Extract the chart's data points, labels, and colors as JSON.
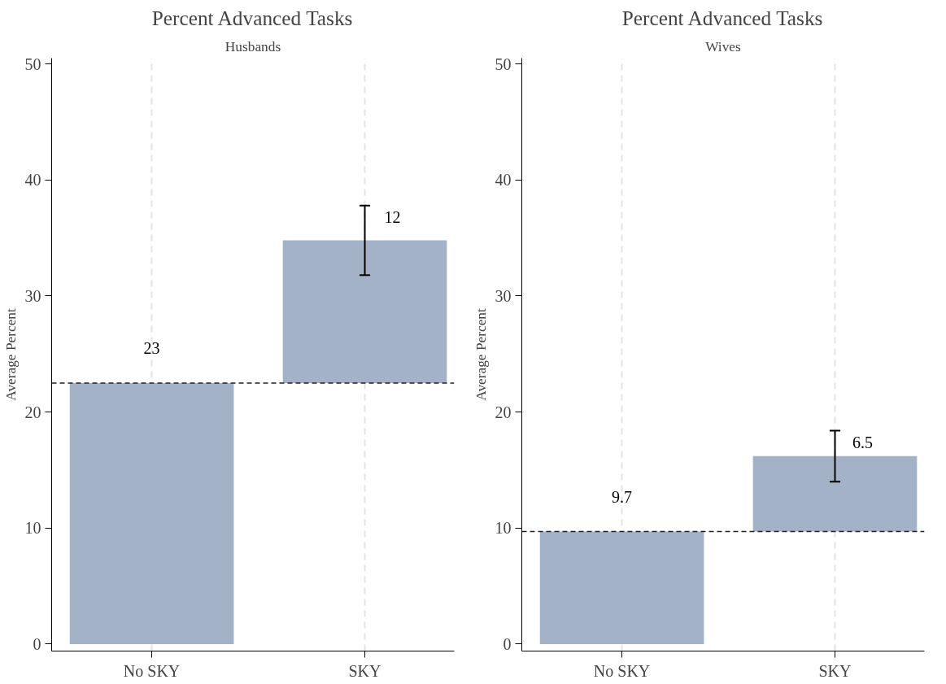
{
  "chart_data": [
    {
      "type": "bar",
      "title": "Percent Advanced Tasks",
      "subtitle": "Husbands",
      "ylabel": "Average Percent",
      "categories": [
        "No SKY",
        "SKY"
      ],
      "values": [
        22.5,
        12.3
      ],
      "base": [
        0,
        22.5
      ],
      "errors": [
        null,
        3.0
      ],
      "value_labels": [
        "23",
        "12"
      ],
      "color": "#a3b2c7",
      "ref_lines": [
        {
          "axis": "y",
          "value": 22.5,
          "line_style": "dashed",
          "color": "#222222"
        }
      ],
      "ylim": [
        -0.6,
        50.5
      ],
      "yticks": [
        0,
        10,
        20,
        30,
        40,
        50
      ],
      "grid": "x"
    },
    {
      "type": "bar",
      "title": "Percent Advanced Tasks",
      "subtitle": "Wives",
      "ylabel": "Average Percent",
      "categories": [
        "No SKY",
        "SKY"
      ],
      "values": [
        9.7,
        6.5
      ],
      "base": [
        0,
        9.7
      ],
      "errors": [
        null,
        2.2
      ],
      "value_labels": [
        "9.7",
        "6.5"
      ],
      "color": "#a3b2c7",
      "ref_lines": [
        {
          "axis": "y",
          "value": 9.7,
          "line_style": "dashed",
          "color": "#222222"
        }
      ],
      "ylim": [
        -0.6,
        50.5
      ],
      "yticks": [
        0,
        10,
        20,
        30,
        40,
        50
      ],
      "grid": "x"
    }
  ]
}
